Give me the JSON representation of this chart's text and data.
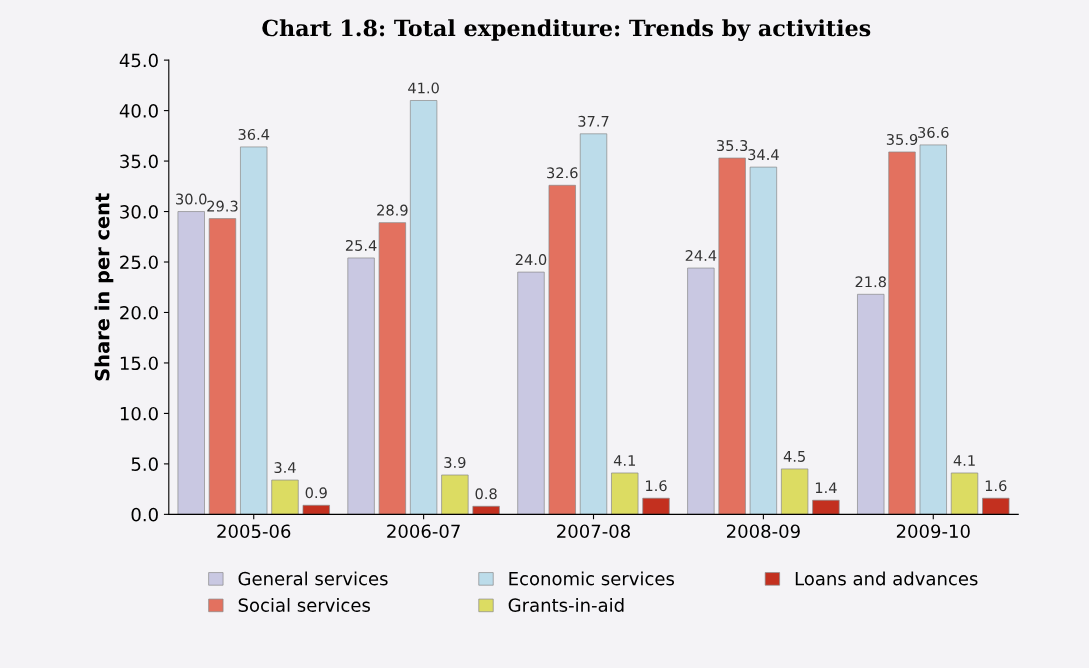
{
  "chart_data": {
    "type": "bar",
    "title": "Chart 1.8: Total expenditure: Trends by activities",
    "ylabel": "Share in per cent",
    "categories": [
      "2005-06",
      "2006-07",
      "2007-08",
      "2008-09",
      "2009-10"
    ],
    "series": [
      {
        "name": "General services",
        "color": "#c9c8e2",
        "values": [
          30.0,
          25.4,
          24.0,
          24.4,
          21.8
        ],
        "value_labels": [
          "30.0",
          "25.4",
          "24.0",
          "24.4",
          "21.8"
        ]
      },
      {
        "name": "Social services",
        "color": "#e3715f",
        "values": [
          29.3,
          28.9,
          32.6,
          35.3,
          35.9
        ],
        "value_labels": [
          "29.3",
          "28.9",
          "32.6",
          "35.3",
          "35.9"
        ]
      },
      {
        "name": "Economic services",
        "color": "#bcdcea",
        "values": [
          36.4,
          41.0,
          37.7,
          34.4,
          36.6
        ],
        "value_labels": [
          "36.4",
          "41.0",
          "37.7",
          "34.4",
          "36.6"
        ]
      },
      {
        "name": "Grants-in-aid",
        "color": "#dcdc62",
        "values": [
          3.4,
          3.9,
          4.1,
          4.5,
          4.1
        ],
        "value_labels": [
          "3.4",
          "3.9",
          "4.1",
          "4.5",
          "4.1"
        ]
      },
      {
        "name": "Loans and advances",
        "color": "#c3301f",
        "values": [
          0.9,
          0.8,
          1.6,
          1.4,
          1.6
        ],
        "value_labels": [
          "0.9",
          "0.8",
          "1.6",
          "1.4",
          "1.6"
        ]
      }
    ],
    "ylim": [
      0,
      45
    ],
    "yticks": [
      {
        "value": 0,
        "label": "0.0"
      },
      {
        "value": 5,
        "label": "5.0"
      },
      {
        "value": 10,
        "label": "10.0"
      },
      {
        "value": 15,
        "label": "15.0"
      },
      {
        "value": 20,
        "label": "20.0"
      },
      {
        "value": 25,
        "label": "25.0"
      },
      {
        "value": 30,
        "label": "30.0"
      },
      {
        "value": 35,
        "label": "35.0"
      },
      {
        "value": 40,
        "label": "40.0"
      },
      {
        "value": 45,
        "label": "45.0"
      }
    ],
    "grid": false,
    "legend": "bottom"
  }
}
